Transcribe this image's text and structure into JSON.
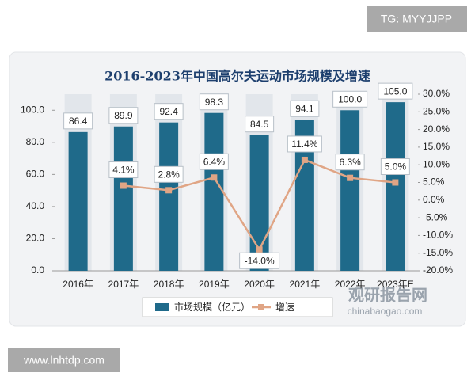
{
  "chart_data": {
    "type": "bar-line",
    "title": "2016-2023年中国高尔夫运动市场规模及增速",
    "categories": [
      "2016年",
      "2017年",
      "2018年",
      "2019年",
      "2020年",
      "2021年",
      "2022年",
      "2023年E"
    ],
    "series": [
      {
        "name": "市场规模（亿元）",
        "type": "bar",
        "color": "#1f6a8a",
        "values": [
          86.4,
          89.9,
          92.4,
          98.3,
          84.5,
          94.1,
          100.0,
          105.0
        ],
        "value_labels": [
          "86.4",
          "89.9",
          "92.4",
          "98.3",
          "84.5",
          "94.1",
          "100.0",
          "105.0"
        ]
      },
      {
        "name": "增速",
        "type": "line",
        "axis": "y2",
        "color": "#e0a585",
        "values": [
          null,
          4.1,
          2.8,
          6.4,
          -14.0,
          11.4,
          6.3,
          5.0
        ],
        "value_labels": [
          null,
          "4.1%",
          "2.8%",
          "6.4%",
          "-14.0%",
          "11.4%",
          "6.3%",
          "5.0%"
        ]
      }
    ],
    "ylim": [
      0,
      110
    ],
    "yticks": [
      {
        "value": 0,
        "label": "0.0"
      },
      {
        "value": 20,
        "label": "20.0"
      },
      {
        "value": 40,
        "label": "40.0"
      },
      {
        "value": 60,
        "label": "60.0"
      },
      {
        "value": 80,
        "label": "80.0"
      },
      {
        "value": 100,
        "label": "100.0"
      }
    ],
    "y2lim": [
      -20,
      30
    ],
    "y2ticks": [
      {
        "value": -20,
        "label": "-20.0%"
      },
      {
        "value": -15,
        "label": "-15.0%"
      },
      {
        "value": -10,
        "label": "-10.0%"
      },
      {
        "value": -5,
        "label": "-5.0%"
      },
      {
        "value": 0,
        "label": "0.0%"
      },
      {
        "value": 5,
        "label": "5.0%"
      },
      {
        "value": 10,
        "label": "10.0%"
      },
      {
        "value": 15,
        "label": "15.0%"
      },
      {
        "value": 20,
        "label": "20.0%"
      },
      {
        "value": 25,
        "label": "25.0%"
      },
      {
        "value": 30,
        "label": "30.0%"
      }
    ],
    "grid": false
  },
  "watermarks": {
    "top_right": "TG: MYYJJPP",
    "bottom_left": "www.lnhtdp.com",
    "brand": "观研报告网",
    "brand_url": "chinabaogao.com"
  }
}
